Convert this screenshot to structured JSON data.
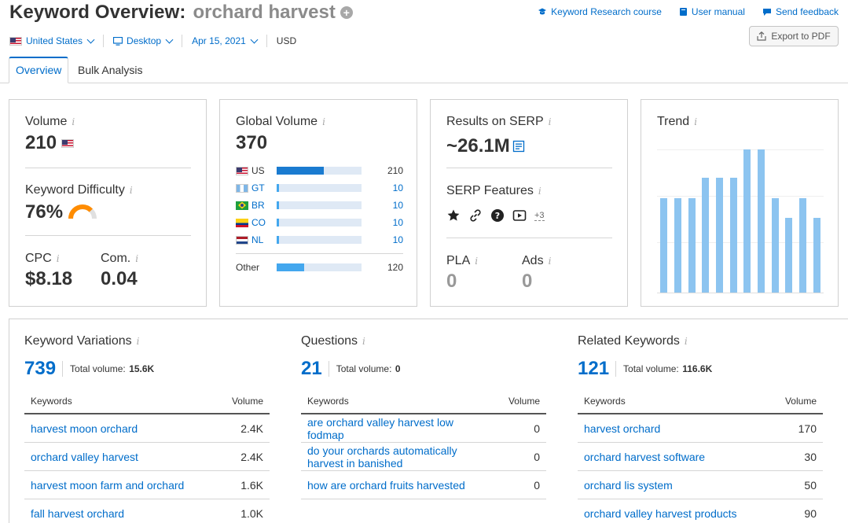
{
  "header": {
    "title": "Keyword Overview:",
    "keyword": "orchard harvest",
    "links": {
      "course": "Keyword Research course",
      "manual": "User manual",
      "feedback": "Send feedback"
    },
    "export_label": "Export to PDF"
  },
  "filters": {
    "country": "United States",
    "device": "Desktop",
    "date": "Apr 15, 2021",
    "currency": "USD"
  },
  "tabs": {
    "overview": "Overview",
    "bulk": "Bulk Analysis"
  },
  "volume": {
    "label": "Volume",
    "value": "210",
    "kd_label": "Keyword Difficulty",
    "kd_value": "76%",
    "kd_percent": 76,
    "cpc_label": "CPC",
    "cpc_value": "$8.18",
    "com_label": "Com.",
    "com_value": "0.04"
  },
  "global": {
    "label": "Global Volume",
    "value": "370",
    "rows": [
      {
        "code": "US",
        "value": "210",
        "fraction": 0.56
      },
      {
        "code": "GT",
        "value": "10",
        "fraction": 0.02
      },
      {
        "code": "BR",
        "value": "10",
        "fraction": 0.02
      },
      {
        "code": "CO",
        "value": "10",
        "fraction": 0.02
      },
      {
        "code": "NL",
        "value": "10",
        "fraction": 0.02
      }
    ],
    "other": {
      "label": "Other",
      "value": "120",
      "fraction": 0.32
    }
  },
  "serp": {
    "results_label": "Results on SERP",
    "results_value": "~26.1M",
    "features_label": "SERP Features",
    "more_features": "+3",
    "pla_label": "PLA",
    "pla_value": "0",
    "ads_label": "Ads",
    "ads_value": "0"
  },
  "trend": {
    "label": "Trend",
    "values": [
      0.66,
      0.66,
      0.66,
      0.8,
      0.8,
      0.8,
      1.0,
      1.0,
      0.66,
      0.52,
      0.66,
      0.52
    ]
  },
  "variations": {
    "title": "Keyword Variations",
    "count": "739",
    "total_label": "Total volume:",
    "total_value": "15.6K",
    "col_keywords": "Keywords",
    "col_volume": "Volume",
    "rows": [
      {
        "kw": "harvest moon orchard",
        "vol": "2.4K"
      },
      {
        "kw": "orchard valley harvest",
        "vol": "2.4K"
      },
      {
        "kw": "harvest moon farm and orchard",
        "vol": "1.6K"
      },
      {
        "kw": "fall harvest orchard",
        "vol": "1.0K"
      }
    ]
  },
  "questions": {
    "title": "Questions",
    "count": "21",
    "total_label": "Total volume:",
    "total_value": "0",
    "col_keywords": "Keywords",
    "col_volume": "Volume",
    "rows": [
      {
        "kw": "are orchard valley harvest low fodmap",
        "vol": "0"
      },
      {
        "kw": "do your orchards automatically harvest in banished",
        "vol": "0"
      },
      {
        "kw": "how are orchard fruits harvested",
        "vol": "0"
      }
    ]
  },
  "related": {
    "title": "Related Keywords",
    "count": "121",
    "total_label": "Total volume:",
    "total_value": "116.6K",
    "col_keywords": "Keywords",
    "col_volume": "Volume",
    "rows": [
      {
        "kw": "harvest orchard",
        "vol": "170"
      },
      {
        "kw": "orchard harvest software",
        "vol": "30"
      },
      {
        "kw": "orchard lis system",
        "vol": "50"
      },
      {
        "kw": "orchard valley harvest products",
        "vol": "90"
      }
    ]
  },
  "colors": {
    "accent": "#006dca",
    "bar_dark": "#1a7bd0",
    "bar_light": "#43a7ee",
    "trend": "#8cc4f0",
    "kd": "#ff8c00"
  }
}
